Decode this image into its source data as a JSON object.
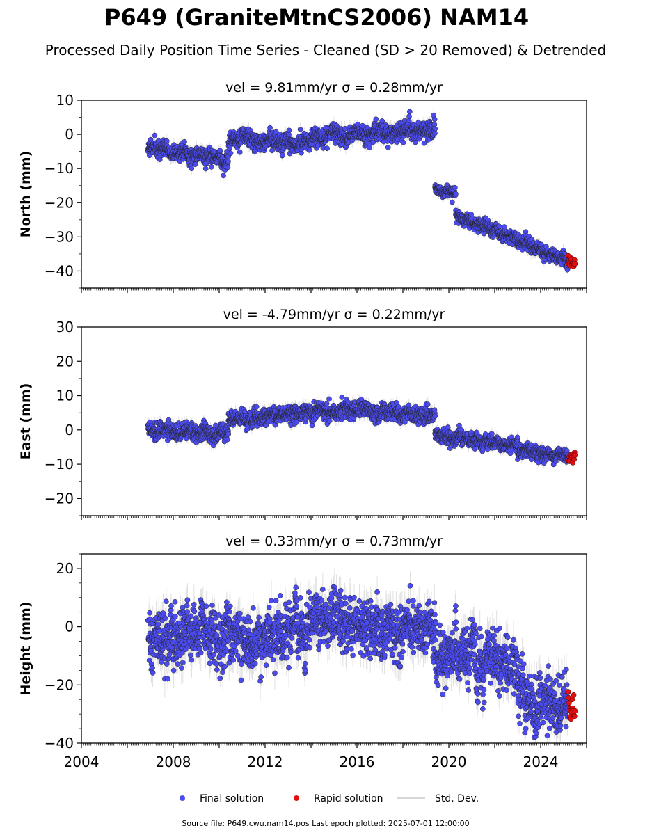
{
  "title": "P649 (GraniteMtnCS2006) NAM14",
  "subtitle": "Processed Daily Position Time Series - Cleaned (SD > 20 Removed) & Detrended",
  "footer": "Source file: P649.cwu.nam14.pos  Last epoch plotted: 2025-07-01 12:00:00",
  "legend": {
    "final": "Final solution",
    "rapid": "Rapid solution",
    "std": "Std. Dev."
  },
  "colors": {
    "final": "#4b4bf0",
    "rapid": "#e01010",
    "std": "#c8c8c8"
  },
  "chart_data": [
    {
      "type": "scatter",
      "panel_title": "vel = 9.81mm/yr   σ = 0.28mm/yr",
      "ylabel": "North (mm)",
      "xlim": [
        2004,
        2026
      ],
      "ylim": [
        -45,
        10
      ],
      "yticks": [
        10,
        0,
        -10,
        -20,
        -30,
        -40
      ],
      "series": [
        {
          "name": "Final solution",
          "segments": [
            {
              "x": [
                2006.9,
                2010.4
              ],
              "y": [
                -4,
                -8
              ],
              "scatter": 1.5,
              "std": 1.5
            },
            {
              "x": [
                2010.4,
                2014.0
              ],
              "y": [
                -1.5,
                -2.5
              ],
              "scatter": 1.6,
              "std": 1.5
            },
            {
              "x": [
                2014.0,
                2019.4
              ],
              "y": [
                -1,
                1.5
              ],
              "scatter": 1.6,
              "std": 1.6
            },
            {
              "x": [
                2019.4,
                2020.3
              ],
              "y": [
                -16,
                -17
              ],
              "scatter": 1.0,
              "std": 1.2
            },
            {
              "x": [
                2020.3,
                2025.2
              ],
              "y": [
                -24,
                -37
              ],
              "scatter": 1.2,
              "std": 1.4
            }
          ]
        },
        {
          "name": "Rapid solution",
          "x": [
            2025.2,
            2025.5
          ],
          "y": [
            -37.5,
            -37.5
          ],
          "scatter": 1.0
        }
      ]
    },
    {
      "type": "scatter",
      "panel_title": "vel = -4.79mm/yr   σ = 0.22mm/yr",
      "ylabel": "East (mm)",
      "xlim": [
        2004,
        2026
      ],
      "ylim": [
        -25,
        30
      ],
      "yticks": [
        30,
        20,
        10,
        0,
        -10,
        -20
      ],
      "series": [
        {
          "name": "Final solution",
          "segments": [
            {
              "x": [
                2006.9,
                2010.4
              ],
              "y": [
                0.5,
                -1.5
              ],
              "scatter": 1.5,
              "std": 1.5
            },
            {
              "x": [
                2010.4,
                2015.5
              ],
              "y": [
                3,
                6
              ],
              "scatter": 1.5,
              "std": 1.5
            },
            {
              "x": [
                2015.5,
                2019.4
              ],
              "y": [
                6,
                4
              ],
              "scatter": 1.5,
              "std": 1.5
            },
            {
              "x": [
                2019.4,
                2023.0
              ],
              "y": [
                -1.5,
                -4.5
              ],
              "scatter": 1.2,
              "std": 1.3
            },
            {
              "x": [
                2023.0,
                2025.2
              ],
              "y": [
                -6.5,
                -7.5
              ],
              "scatter": 1.2,
              "std": 1.3
            }
          ]
        },
        {
          "name": "Rapid solution",
          "x": [
            2025.2,
            2025.5
          ],
          "y": [
            -8.5,
            -8.5
          ],
          "scatter": 0.8
        }
      ]
    },
    {
      "type": "scatter",
      "panel_title": "vel = 0.33mm/yr   σ = 0.73mm/yr",
      "ylabel": "Height (mm)",
      "xlim": [
        2004,
        2026
      ],
      "ylim": [
        -40,
        25
      ],
      "yticks": [
        20,
        0,
        -20,
        -40
      ],
      "xticks": [
        2004,
        2008,
        2012,
        2016,
        2020,
        2024
      ],
      "series": [
        {
          "name": "Final solution",
          "segments": [
            {
              "x": [
                2006.9,
                2014.0
              ],
              "y": [
                -4,
                -2
              ],
              "scatter": 6,
              "std": 5
            },
            {
              "x": [
                2014.0,
                2018.0
              ],
              "y": [
                3,
                -2
              ],
              "scatter": 6,
              "std": 5
            },
            {
              "x": [
                2018.0,
                2019.4
              ],
              "y": [
                0,
                0
              ],
              "scatter": 5,
              "std": 5
            },
            {
              "x": [
                2019.4,
                2023.0
              ],
              "y": [
                -10,
                -14
              ],
              "scatter": 6,
              "std": 5
            },
            {
              "x": [
                2023.0,
                2025.2
              ],
              "y": [
                -24,
                -26
              ],
              "scatter": 6,
              "std": 5
            }
          ]
        },
        {
          "name": "Rapid solution",
          "x": [
            2025.2,
            2025.5
          ],
          "y": [
            -29,
            -29
          ],
          "scatter": 3.5
        }
      ]
    }
  ]
}
